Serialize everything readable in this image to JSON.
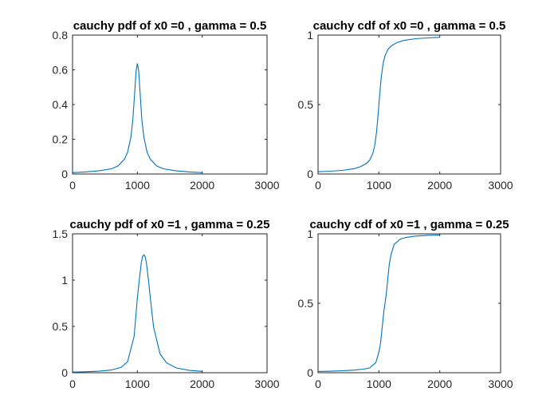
{
  "chart_data": [
    {
      "type": "line",
      "title": "cauchy pdf of x0 =0 , gamma = 0.5",
      "xlim": [
        0,
        3000
      ],
      "ylim": [
        0,
        0.8
      ],
      "xticks": [
        0,
        1000,
        2000,
        3000
      ],
      "xtick_labels": [
        "0",
        "1000",
        "2000",
        "3000"
      ],
      "yticks": [
        0,
        0.2,
        0.4,
        0.6,
        0.8
      ],
      "ytick_labels": [
        "0",
        "0.2",
        "0.4",
        "0.6",
        "0.8"
      ],
      "grid": false,
      "series": [
        {
          "color": "#0072BD",
          "x": [
            1,
            200,
            400,
            600,
            700,
            800,
            850,
            900,
            930,
            960,
            980,
            1000,
            1020,
            1040,
            1070,
            1100,
            1150,
            1200,
            1300,
            1400,
            1600,
            1800,
            2000
          ],
          "y": [
            0.008,
            0.012,
            0.018,
            0.03,
            0.046,
            0.085,
            0.125,
            0.212,
            0.311,
            0.478,
            0.592,
            0.637,
            0.592,
            0.478,
            0.311,
            0.212,
            0.125,
            0.085,
            0.046,
            0.03,
            0.018,
            0.012,
            0.008
          ]
        }
      ]
    },
    {
      "type": "line",
      "title": "cauchy cdf of x0 =0 , gamma = 0.5",
      "xlim": [
        0,
        3000
      ],
      "ylim": [
        0,
        1
      ],
      "xticks": [
        0,
        1000,
        2000,
        3000
      ],
      "xtick_labels": [
        "0",
        "1000",
        "2000",
        "3000"
      ],
      "yticks": [
        0,
        0.5,
        1
      ],
      "ytick_labels": [
        "0",
        "0.5",
        "1"
      ],
      "grid": false,
      "series": [
        {
          "color": "#0072BD",
          "x": [
            1,
            200,
            400,
            600,
            700,
            800,
            850,
            900,
            930,
            960,
            980,
            1000,
            1020,
            1040,
            1070,
            1100,
            1150,
            1200,
            1300,
            1400,
            1600,
            1800,
            2000
          ],
          "y": [
            0.016,
            0.02,
            0.026,
            0.039,
            0.053,
            0.078,
            0.102,
            0.148,
            0.201,
            0.298,
            0.39,
            0.5,
            0.61,
            0.702,
            0.799,
            0.852,
            0.898,
            0.922,
            0.947,
            0.961,
            0.974,
            0.98,
            0.984
          ]
        }
      ]
    },
    {
      "type": "line",
      "title": "cauchy pdf of x0 =1 , gamma = 0.25",
      "xlim": [
        0,
        3000
      ],
      "ylim": [
        0,
        1.5
      ],
      "xticks": [
        0,
        1000,
        2000,
        3000
      ],
      "xtick_labels": [
        "0",
        "1000",
        "2000",
        "3000"
      ],
      "yticks": [
        0,
        0.5,
        1,
        1.5
      ],
      "ytick_labels": [
        "0",
        "0.5",
        "1",
        "1.5"
      ],
      "grid": false,
      "series": [
        {
          "color": "#0072BD",
          "x": [
            1,
            200,
            400,
            600,
            750,
            850,
            950,
            1000,
            1030,
            1060,
            1080,
            1100,
            1120,
            1140,
            1170,
            1200,
            1250,
            1350,
            1450,
            1600,
            1800,
            2000
          ],
          "y": [
            0.007,
            0.01,
            0.016,
            0.029,
            0.058,
            0.12,
            0.395,
            0.805,
            1.007,
            1.184,
            1.254,
            1.273,
            1.254,
            1.184,
            1.007,
            0.805,
            0.491,
            0.203,
            0.107,
            0.052,
            0.025,
            0.015
          ]
        }
      ]
    },
    {
      "type": "line",
      "title": "cauchy cdf of x0 =1 , gamma = 0.25",
      "xlim": [
        0,
        3000
      ],
      "ylim": [
        0,
        1
      ],
      "xticks": [
        0,
        1000,
        2000,
        3000
      ],
      "xtick_labels": [
        "0",
        "1000",
        "2000",
        "3000"
      ],
      "yticks": [
        0,
        0.5,
        1
      ],
      "ytick_labels": [
        "0",
        "0.5",
        "1"
      ],
      "grid": false,
      "series": [
        {
          "color": "#0072BD",
          "x": [
            1,
            200,
            400,
            600,
            750,
            850,
            950,
            1000,
            1030,
            1060,
            1080,
            1100,
            1120,
            1140,
            1170,
            1200,
            1250,
            1350,
            1450,
            1600,
            1800,
            2000
          ],
          "y": [
            0.009,
            0.011,
            0.014,
            0.019,
            0.026,
            0.035,
            0.073,
            0.148,
            0.221,
            0.352,
            0.437,
            0.5,
            0.563,
            0.648,
            0.779,
            0.852,
            0.924,
            0.962,
            0.975,
            0.984,
            0.989,
            0.992
          ]
        }
      ]
    }
  ]
}
